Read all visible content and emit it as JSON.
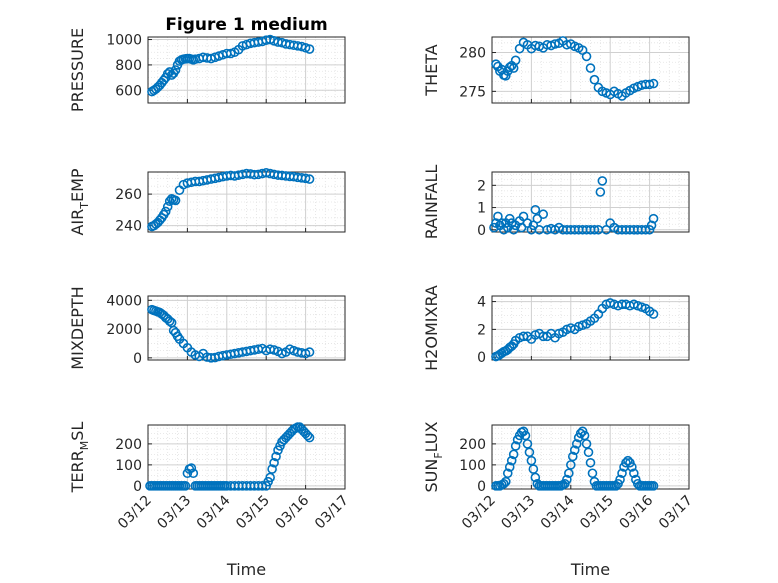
{
  "figure": {
    "title": "Figure 1 medium",
    "x_label": "Time",
    "x_ticks": [
      "03/12",
      "03/13",
      "03/14",
      "03/15",
      "03/16",
      "03/17"
    ],
    "marker_color": "#0072bd"
  },
  "chart_data": [
    {
      "type": "scatter",
      "name": "pressure",
      "ylabel": "PRESSURE",
      "sub": "",
      "ylim": [
        500,
        1020
      ],
      "yticks": [
        600,
        800,
        1000
      ],
      "title": "Figure 1 medium",
      "x_range_days": [
        0,
        5
      ],
      "series": [
        {
          "name": "PRESSURE",
          "x": [
            0.1,
            0.15,
            0.2,
            0.25,
            0.3,
            0.35,
            0.4,
            0.45,
            0.5,
            0.55,
            0.6,
            0.65,
            0.7,
            0.75,
            0.8,
            0.85,
            0.9,
            0.95,
            1.0,
            1.05,
            1.1,
            1.15,
            1.2,
            1.3,
            1.4,
            1.5,
            1.6,
            1.7,
            1.8,
            1.9,
            2.0,
            2.1,
            2.2,
            2.3,
            2.4,
            2.5,
            2.6,
            2.7,
            2.8,
            2.9,
            3.0,
            3.1,
            3.2,
            3.3,
            3.4,
            3.5,
            3.6,
            3.7,
            3.8,
            3.9,
            4.0,
            4.1
          ],
          "y": [
            590,
            600,
            610,
            625,
            640,
            660,
            680,
            700,
            730,
            745,
            720,
            735,
            760,
            800,
            830,
            840,
            845,
            848,
            850,
            850,
            845,
            840,
            845,
            850,
            860,
            855,
            850,
            860,
            870,
            880,
            890,
            890,
            900,
            920,
            950,
            960,
            970,
            975,
            980,
            985,
            995,
            1000,
            990,
            980,
            975,
            965,
            960,
            955,
            950,
            945,
            935,
            925
          ]
        }
      ]
    },
    {
      "type": "scatter",
      "name": "theta",
      "ylabel": "THETA",
      "sub": "",
      "ylim": [
        273.5,
        282
      ],
      "yticks": [
        275,
        280
      ],
      "series": [
        {
          "name": "THETA",
          "x": [
            0.1,
            0.15,
            0.2,
            0.25,
            0.3,
            0.35,
            0.4,
            0.45,
            0.5,
            0.55,
            0.6,
            0.7,
            0.8,
            0.9,
            1.0,
            1.1,
            1.2,
            1.3,
            1.4,
            1.5,
            1.6,
            1.7,
            1.8,
            1.9,
            2.0,
            2.1,
            2.2,
            2.3,
            2.4,
            2.5,
            2.6,
            2.7,
            2.8,
            2.9,
            3.0,
            3.1,
            3.2,
            3.3,
            3.4,
            3.5,
            3.6,
            3.7,
            3.8,
            3.9,
            4.0,
            4.1
          ],
          "y": [
            278.5,
            278.2,
            277.6,
            277.8,
            277.1,
            277.0,
            277.6,
            278.1,
            278.3,
            278.0,
            279.0,
            280.5,
            281.3,
            281.0,
            280.5,
            280.9,
            280.8,
            280.6,
            281.0,
            280.9,
            281.1,
            281.2,
            281.5,
            281.0,
            281.1,
            280.8,
            280.6,
            280.3,
            279.5,
            278.0,
            276.5,
            275.5,
            275.0,
            274.8,
            274.6,
            275.0,
            274.7,
            274.4,
            274.8,
            275.1,
            275.4,
            275.6,
            275.8,
            275.9,
            275.9,
            276.0
          ]
        }
      ]
    },
    {
      "type": "scatter",
      "name": "air-temp",
      "ylabel": "AIR",
      "sub": "T",
      "ylabel_tail": "EMP",
      "ylim": [
        236,
        274
      ],
      "yticks": [
        240,
        260
      ],
      "series": [
        {
          "name": "AIR_TEMP",
          "x": [
            0.1,
            0.15,
            0.2,
            0.25,
            0.3,
            0.35,
            0.4,
            0.45,
            0.5,
            0.55,
            0.6,
            0.65,
            0.7,
            0.8,
            0.9,
            1.0,
            1.1,
            1.2,
            1.3,
            1.4,
            1.5,
            1.6,
            1.7,
            1.8,
            1.9,
            2.0,
            2.1,
            2.2,
            2.3,
            2.4,
            2.5,
            2.6,
            2.7,
            2.8,
            2.9,
            3.0,
            3.1,
            3.2,
            3.3,
            3.4,
            3.5,
            3.6,
            3.7,
            3.8,
            3.9,
            4.0,
            4.1
          ],
          "y": [
            239.5,
            240.0,
            241.0,
            242.0,
            243.5,
            245.0,
            247.0,
            249.0,
            252.0,
            255.5,
            257.0,
            256.5,
            256.0,
            262.5,
            266.0,
            267.0,
            267.5,
            268.0,
            268.0,
            268.5,
            269.0,
            269.5,
            270.0,
            270.5,
            271.0,
            271.5,
            271.8,
            271.5,
            272.0,
            272.5,
            273.0,
            272.8,
            272.3,
            272.5,
            273.0,
            273.5,
            273.0,
            272.5,
            272.0,
            271.8,
            271.5,
            271.2,
            271.0,
            270.6,
            270.3,
            270.0,
            269.5
          ]
        }
      ]
    },
    {
      "type": "scatter",
      "name": "rainfall",
      "ylabel": "RAINFALL",
      "sub": "",
      "ylim": [
        -0.1,
        2.6
      ],
      "yticks": [
        0,
        1,
        2
      ],
      "series": [
        {
          "name": "RAINFALL",
          "x": [
            0.05,
            0.1,
            0.15,
            0.2,
            0.25,
            0.3,
            0.35,
            0.4,
            0.45,
            0.5,
            0.55,
            0.6,
            0.7,
            0.75,
            0.8,
            0.9,
            1.0,
            1.05,
            1.1,
            1.15,
            1.2,
            1.3,
            1.4,
            1.5,
            1.6,
            1.7,
            1.8,
            1.9,
            2.0,
            2.1,
            2.2,
            2.3,
            2.4,
            2.5,
            2.6,
            2.7,
            2.75,
            2.8,
            2.9,
            3.0,
            3.1,
            3.2,
            3.3,
            3.4,
            3.5,
            3.6,
            3.7,
            3.8,
            3.9,
            4.0,
            4.05,
            4.1
          ],
          "y": [
            0.1,
            0.3,
            0.6,
            0.2,
            0.3,
            0.0,
            0.3,
            0.1,
            0.5,
            0.3,
            0.0,
            0.2,
            0.4,
            0.1,
            0.6,
            0.3,
            0.0,
            0.2,
            0.9,
            0.5,
            0.0,
            0.7,
            0.0,
            0.05,
            0.0,
            0.1,
            0.0,
            0.0,
            0.0,
            0.0,
            0.0,
            0.0,
            0.0,
            0.0,
            0.0,
            0.0,
            1.7,
            2.2,
            0.0,
            0.3,
            0.1,
            0.0,
            0.0,
            0.0,
            0.0,
            0.0,
            0.0,
            0.0,
            0.0,
            0.0,
            0.2,
            0.5
          ]
        }
      ]
    },
    {
      "type": "scatter",
      "name": "mixdepth",
      "ylabel": "MIXDEPTH",
      "sub": "",
      "ylim": [
        -150,
        4300
      ],
      "yticks": [
        0,
        2000,
        4000
      ],
      "series": [
        {
          "name": "MIXDEPTH",
          "x": [
            0.1,
            0.15,
            0.2,
            0.25,
            0.3,
            0.35,
            0.4,
            0.45,
            0.5,
            0.55,
            0.6,
            0.65,
            0.7,
            0.75,
            0.8,
            0.9,
            1.0,
            1.1,
            1.2,
            1.3,
            1.4,
            1.5,
            1.6,
            1.7,
            1.8,
            1.9,
            2.0,
            2.1,
            2.2,
            2.3,
            2.4,
            2.5,
            2.6,
            2.7,
            2.8,
            2.9,
            3.0,
            3.1,
            3.2,
            3.3,
            3.4,
            3.5,
            3.6,
            3.7,
            3.8,
            3.9,
            4.0,
            4.1
          ],
          "y": [
            3350,
            3300,
            3250,
            3200,
            3150,
            3050,
            2950,
            2800,
            2700,
            2550,
            2450,
            1900,
            1750,
            1500,
            1300,
            1000,
            700,
            400,
            200,
            100,
            300,
            50,
            0,
            20,
            100,
            150,
            200,
            250,
            300,
            350,
            400,
            450,
            500,
            550,
            600,
            650,
            500,
            600,
            550,
            450,
            300,
            400,
            600,
            500,
            400,
            350,
            300,
            400
          ]
        }
      ]
    },
    {
      "type": "scatter",
      "name": "h2omixra",
      "ylabel": "H2OMIXRA",
      "sub": "",
      "ylim": [
        -0.2,
        4.4
      ],
      "yticks": [
        0,
        2,
        4
      ],
      "series": [
        {
          "name": "H2OMIXRA",
          "x": [
            0.1,
            0.15,
            0.2,
            0.25,
            0.3,
            0.35,
            0.4,
            0.45,
            0.5,
            0.55,
            0.6,
            0.7,
            0.8,
            0.9,
            1.0,
            1.1,
            1.2,
            1.3,
            1.4,
            1.5,
            1.6,
            1.7,
            1.8,
            1.9,
            2.0,
            2.1,
            2.2,
            2.3,
            2.4,
            2.5,
            2.6,
            2.7,
            2.8,
            2.9,
            3.0,
            3.1,
            3.2,
            3.3,
            3.4,
            3.5,
            3.6,
            3.7,
            3.8,
            3.9,
            4.0,
            4.1
          ],
          "y": [
            0.05,
            0.1,
            0.2,
            0.3,
            0.4,
            0.45,
            0.55,
            0.7,
            0.8,
            0.95,
            1.2,
            1.4,
            1.5,
            1.5,
            1.3,
            1.6,
            1.7,
            1.5,
            1.5,
            1.7,
            1.4,
            1.7,
            1.8,
            2.0,
            2.1,
            2.0,
            2.2,
            2.3,
            2.4,
            2.6,
            2.8,
            3.1,
            3.5,
            3.8,
            3.9,
            3.8,
            3.7,
            3.8,
            3.8,
            3.7,
            3.8,
            3.7,
            3.6,
            3.5,
            3.3,
            3.1
          ]
        }
      ]
    },
    {
      "type": "scatter",
      "name": "terr-msl",
      "ylabel": "TERR",
      "sub": "M",
      "ylabel_tail": "SL",
      "ylim": [
        -15,
        290
      ],
      "yticks": [
        0,
        100,
        200
      ],
      "series": [
        {
          "name": "TERR_MSL",
          "x": [
            0.05,
            0.1,
            0.15,
            0.2,
            0.25,
            0.3,
            0.35,
            0.4,
            0.45,
            0.5,
            0.55,
            0.6,
            0.65,
            0.7,
            0.75,
            0.8,
            0.85,
            0.9,
            0.95,
            1.0,
            1.05,
            1.1,
            1.15,
            1.2,
            1.25,
            1.3,
            1.35,
            1.4,
            1.45,
            1.5,
            1.55,
            1.6,
            1.65,
            1.7,
            1.75,
            1.8,
            1.85,
            1.9,
            1.95,
            2.0,
            2.1,
            2.2,
            2.3,
            2.4,
            2.5,
            2.6,
            2.7,
            2.8,
            2.9,
            3.0,
            3.05,
            3.1,
            3.15,
            3.2,
            3.25,
            3.3,
            3.35,
            3.4,
            3.45,
            3.5,
            3.55,
            3.6,
            3.65,
            3.7,
            3.75,
            3.8,
            3.85,
            3.9,
            3.95,
            4.0,
            4.05,
            4.1
          ],
          "y": [
            0,
            0,
            0,
            0,
            0,
            0,
            0,
            0,
            0,
            0,
            0,
            0,
            0,
            0,
            0,
            0,
            0,
            0,
            0,
            60,
            80,
            85,
            60,
            0,
            0,
            0,
            0,
            0,
            0,
            0,
            0,
            0,
            0,
            0,
            0,
            0,
            0,
            0,
            0,
            0,
            0,
            0,
            0,
            0,
            0,
            0,
            0,
            0,
            0,
            0,
            20,
            40,
            80,
            110,
            140,
            170,
            190,
            210,
            220,
            230,
            240,
            250,
            260,
            270,
            275,
            280,
            280,
            270,
            260,
            250,
            240,
            230
          ]
        }
      ]
    },
    {
      "type": "scatter",
      "name": "sun-flux",
      "ylabel": "SUN",
      "sub": "F",
      "ylabel_tail": "LUX",
      "ylim": [
        -15,
        290
      ],
      "yticks": [
        0,
        100,
        200
      ],
      "series": [
        {
          "name": "SUN_FLUX",
          "x": [
            0.1,
            0.15,
            0.2,
            0.25,
            0.3,
            0.35,
            0.4,
            0.45,
            0.5,
            0.55,
            0.6,
            0.65,
            0.7,
            0.75,
            0.8,
            0.85,
            0.9,
            0.95,
            1.0,
            1.05,
            1.1,
            1.15,
            1.2,
            1.25,
            1.3,
            1.35,
            1.4,
            1.45,
            1.5,
            1.55,
            1.6,
            1.65,
            1.7,
            1.75,
            1.8,
            1.85,
            1.9,
            1.95,
            2.0,
            2.05,
            2.1,
            2.15,
            2.2,
            2.25,
            2.3,
            2.35,
            2.4,
            2.45,
            2.5,
            2.55,
            2.6,
            2.65,
            2.7,
            2.75,
            2.8,
            2.85,
            2.9,
            2.95,
            3.0,
            3.05,
            3.1,
            3.15,
            3.2,
            3.25,
            3.3,
            3.35,
            3.4,
            3.45,
            3.5,
            3.55,
            3.6,
            3.65,
            3.7,
            3.75,
            3.8,
            3.85,
            3.9,
            3.95,
            4.0,
            4.05,
            4.1
          ],
          "y": [
            0,
            0,
            0,
            5,
            10,
            20,
            60,
            90,
            120,
            150,
            190,
            220,
            240,
            255,
            260,
            240,
            200,
            160,
            120,
            80,
            40,
            10,
            0,
            0,
            0,
            0,
            0,
            0,
            0,
            0,
            0,
            0,
            0,
            0,
            5,
            10,
            30,
            60,
            100,
            140,
            170,
            200,
            230,
            250,
            260,
            240,
            200,
            160,
            110,
            60,
            20,
            0,
            0,
            0,
            0,
            0,
            0,
            0,
            0,
            0,
            0,
            0,
            10,
            30,
            60,
            90,
            110,
            120,
            110,
            90,
            60,
            30,
            10,
            0,
            0,
            0,
            0,
            0,
            0,
            0,
            0
          ]
        }
      ]
    }
  ]
}
